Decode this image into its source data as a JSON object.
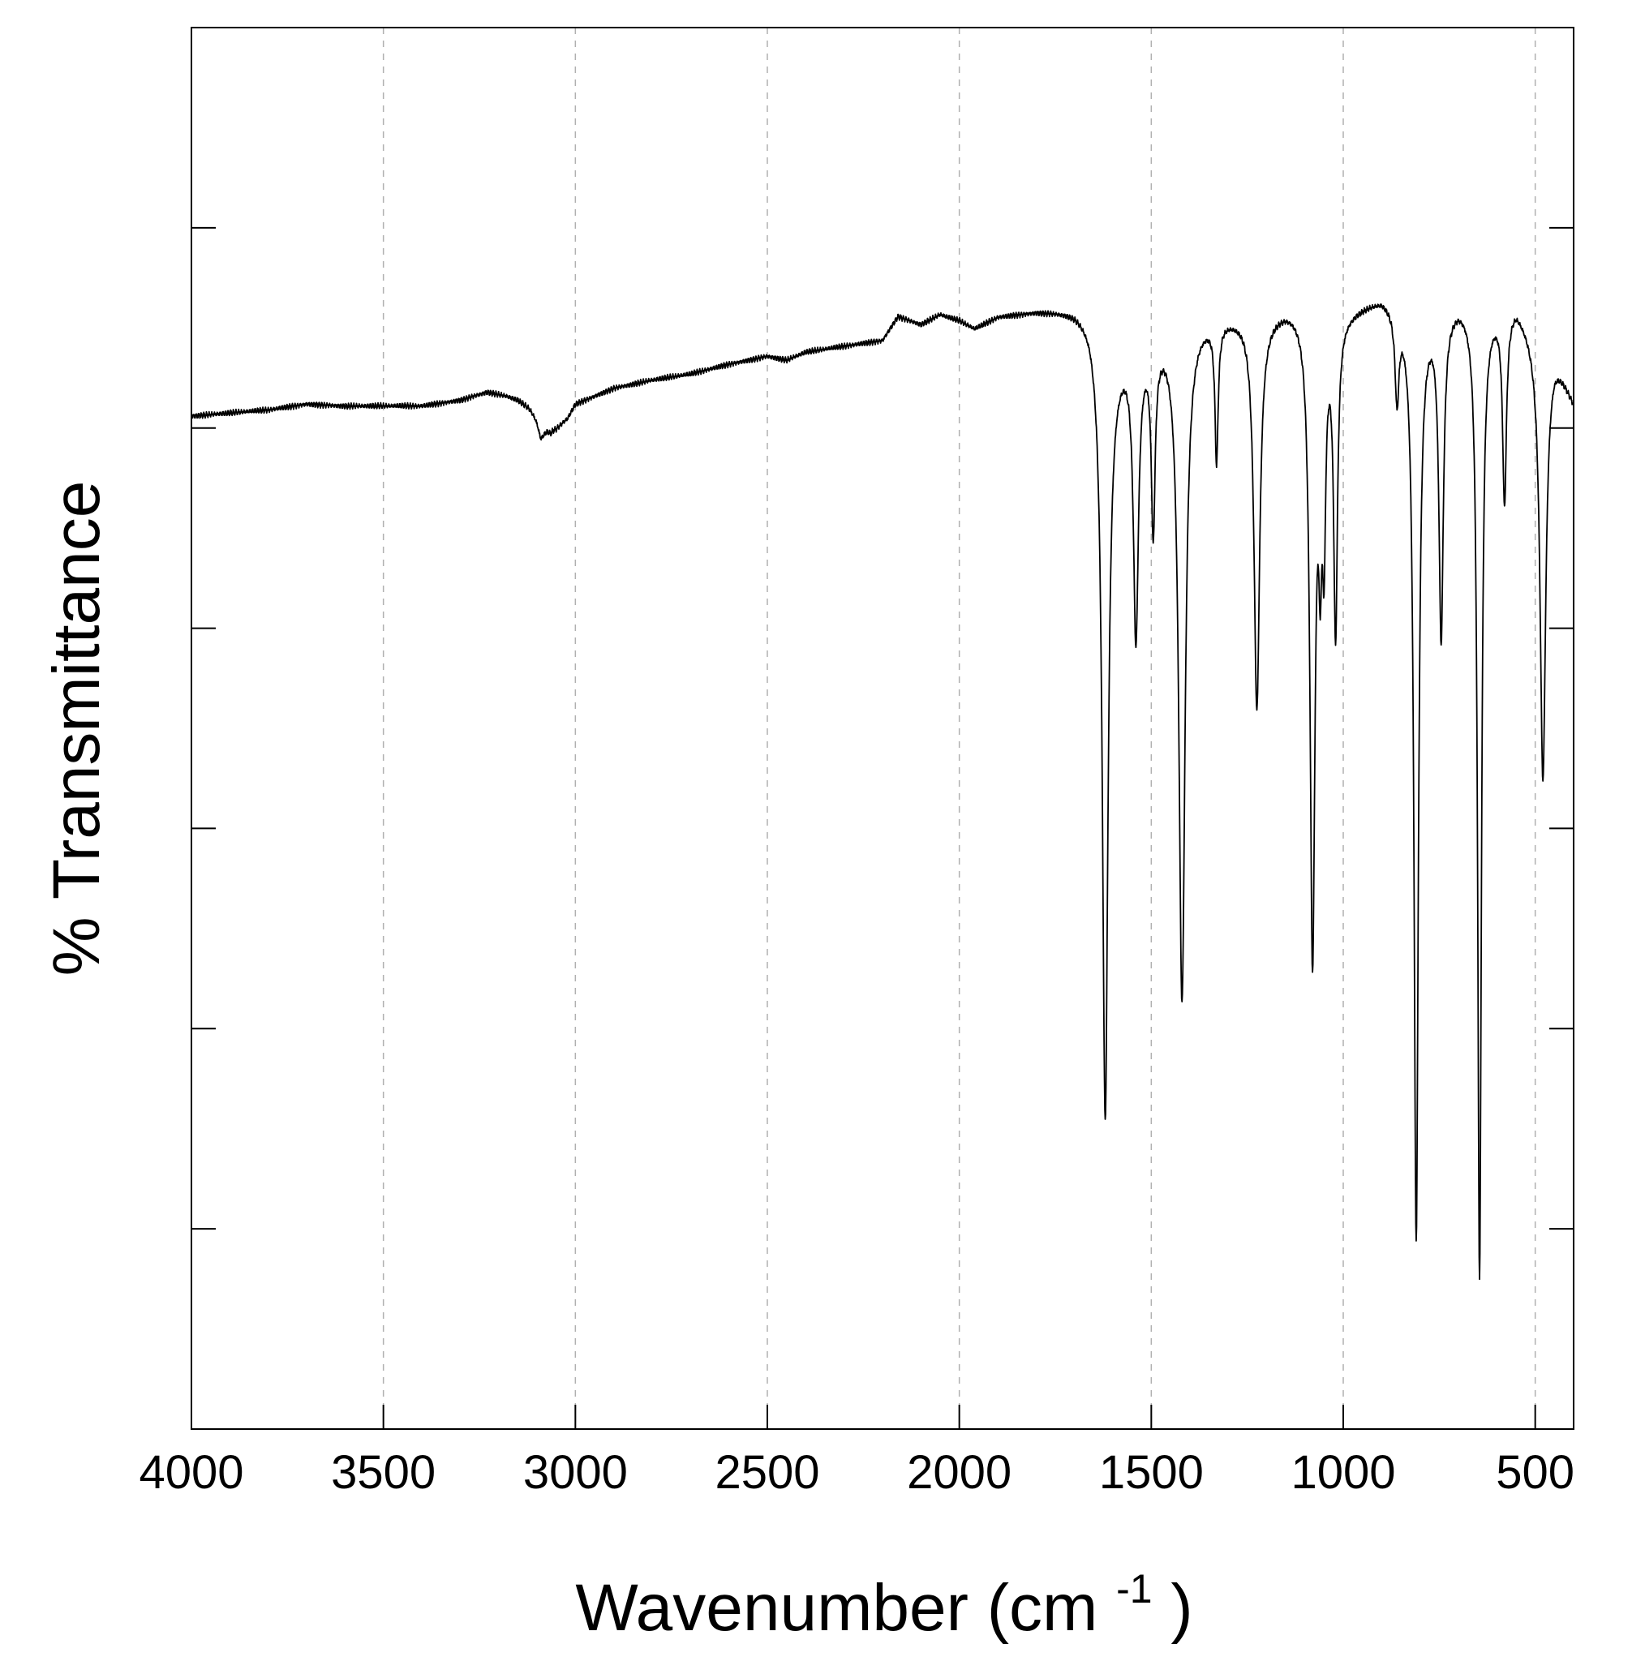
{
  "chart_data": {
    "type": "line",
    "title": "",
    "xlabel": "Wavenumber (cm",
    "xlabel_superscript": "-1",
    "xlabel_close": ")",
    "ylabel": "% Transmittance",
    "x_reversed": true,
    "xlim": [
      4000,
      400
    ],
    "ylim": [
      0,
      7
    ],
    "x_ticks": [
      4000,
      3500,
      3000,
      2500,
      2000,
      1500,
      1000,
      500
    ],
    "x_tick_labels": [
      "4000",
      "3500",
      "3000",
      "2500",
      "2000",
      "1500",
      "1000",
      "500"
    ],
    "y_ticks": [
      1,
      2,
      3,
      4,
      5,
      6
    ],
    "y_tick_labels_shown": false,
    "grid": {
      "vertical": true,
      "horizontal": false,
      "style": "dashed"
    },
    "line_color": "#000000",
    "grid_color": "#b0b0b0",
    "baseline": [
      [
        4000,
        5.06
      ],
      [
        3800,
        5.09
      ],
      [
        3700,
        5.12
      ],
      [
        3600,
        5.11
      ],
      [
        3400,
        5.11
      ],
      [
        3300,
        5.14
      ],
      [
        3230,
        5.18
      ],
      [
        3180,
        5.16
      ],
      [
        3150,
        5.14
      ],
      [
        3120,
        5.1
      ],
      [
        3080,
        5.0
      ],
      [
        3050,
        5.0
      ],
      [
        3020,
        5.05
      ],
      [
        3000,
        5.12
      ],
      [
        2900,
        5.2
      ],
      [
        2800,
        5.24
      ],
      [
        2700,
        5.27
      ],
      [
        2600,
        5.32
      ],
      [
        2500,
        5.36
      ],
      [
        2450,
        5.34
      ],
      [
        2400,
        5.38
      ],
      [
        2300,
        5.41
      ],
      [
        2200,
        5.44
      ],
      [
        2160,
        5.56
      ],
      [
        2100,
        5.52
      ],
      [
        2050,
        5.57
      ],
      [
        2000,
        5.54
      ],
      [
        1960,
        5.5
      ],
      [
        1900,
        5.56
      ],
      [
        1800,
        5.59
      ],
      [
        1700,
        5.6
      ],
      [
        1660,
        5.58
      ],
      [
        1600,
        5.4
      ],
      [
        1500,
        5.48
      ],
      [
        1400,
        5.56
      ],
      [
        1300,
        5.57
      ],
      [
        1200,
        5.58
      ],
      [
        1150,
        5.62
      ],
      [
        1100,
        5.63
      ],
      [
        1050,
        5.55
      ],
      [
        1000,
        5.59
      ],
      [
        900,
        5.67
      ],
      [
        850,
        5.63
      ],
      [
        800,
        5.6
      ],
      [
        750,
        5.62
      ],
      [
        700,
        5.66
      ],
      [
        650,
        5.64
      ],
      [
        600,
        5.63
      ],
      [
        550,
        5.64
      ],
      [
        500,
        5.48
      ],
      [
        450,
        5.4
      ],
      [
        400,
        5.15
      ]
    ],
    "peaks": [
      {
        "x": 3090,
        "y": 4.95,
        "w": 8
      },
      {
        "x": 3065,
        "y": 4.98,
        "w": 6
      },
      {
        "x": 1620,
        "y": 1.57,
        "w": 9
      },
      {
        "x": 1540,
        "y": 4.0,
        "w": 8
      },
      {
        "x": 1495,
        "y": 4.55,
        "w": 6
      },
      {
        "x": 1420,
        "y": 2.16,
        "w": 10
      },
      {
        "x": 1330,
        "y": 4.88,
        "w": 5
      },
      {
        "x": 1225,
        "y": 3.62,
        "w": 9
      },
      {
        "x": 1080,
        "y": 2.39,
        "w": 8
      },
      {
        "x": 1060,
        "y": 4.73,
        "w": 5
      },
      {
        "x": 1050,
        "y": 4.62,
        "w": 5
      },
      {
        "x": 1020,
        "y": 4.02,
        "w": 6
      },
      {
        "x": 860,
        "y": 5.2,
        "w": 6
      },
      {
        "x": 810,
        "y": 0.97,
        "w": 7
      },
      {
        "x": 745,
        "y": 4.0,
        "w": 7
      },
      {
        "x": 645,
        "y": 0.77,
        "w": 6
      },
      {
        "x": 580,
        "y": 4.67,
        "w": 6
      },
      {
        "x": 480,
        "y": 3.26,
        "w": 9
      }
    ]
  }
}
